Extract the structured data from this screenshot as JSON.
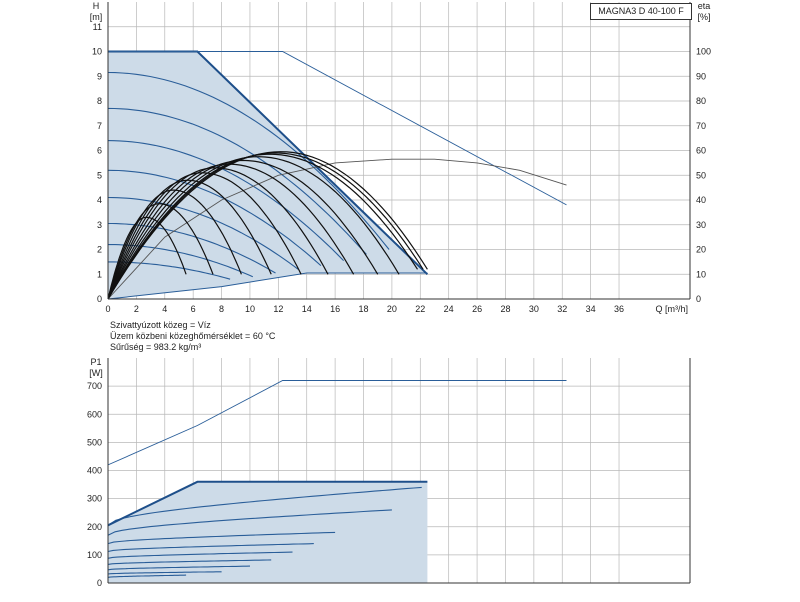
{
  "chart_title": "MAGNA3 D 40-100 F",
  "fluid_info": {
    "line1": "Szivattyúzott közeg = Víz",
    "line2": "Üzem közbeni közeghőmérséklet = 60 °C",
    "line3": "Sűrűség = 983.2 kg/m³"
  },
  "colors": {
    "dark_blue": "#1e4f8a",
    "mid_blue": "#2a5e99",
    "light_blue_fill": "#cddbe8",
    "grid": "#b8b8b8",
    "black_curve": "#111111",
    "thin_grey": "#555555"
  },
  "chart_data": [
    {
      "type": "line",
      "name": "head",
      "xlabel": "Q [m³/h]",
      "ylabel": "H [m]",
      "ylabel_right": "eta [%]",
      "x_ticks": [
        0,
        2,
        4,
        6,
        8,
        10,
        12,
        14,
        16,
        18,
        20,
        22,
        24,
        26,
        28,
        30,
        32,
        34,
        36
      ],
      "y_ticks": [
        0,
        1,
        2,
        3,
        4,
        5,
        6,
        7,
        8,
        9,
        10,
        11
      ],
      "y2_ticks": [
        0,
        10,
        20,
        30,
        40,
        50,
        60,
        70,
        80,
        90,
        100
      ],
      "xlim": [
        0,
        41
      ],
      "ylim": [
        0,
        12
      ],
      "y2lim": [
        0,
        120
      ],
      "grid": true,
      "max_envelope": [
        [
          0,
          10
        ],
        [
          6.3,
          10
        ],
        [
          22.5,
          1
        ]
      ],
      "single_pump_max": [
        [
          0,
          10
        ],
        [
          12.3,
          10
        ],
        [
          32.3,
          3.8
        ]
      ],
      "min_boundary": [
        [
          0,
          0
        ],
        [
          8,
          0.5
        ],
        [
          14,
          1.05
        ],
        [
          22.5,
          1.05
        ]
      ],
      "speed_curves": [
        {
          "H0": 9.15,
          "Qmax": 19.8,
          "Hend": 2.0
        },
        {
          "H0": 7.7,
          "Qmax": 18.2,
          "Hend": 1.8
        },
        {
          "H0": 6.4,
          "Qmax": 16.6,
          "Hend": 1.55
        },
        {
          "H0": 5.2,
          "Qmax": 15.0,
          "Hend": 1.35
        },
        {
          "H0": 4.1,
          "Qmax": 13.4,
          "Hend": 1.2
        },
        {
          "H0": 3.05,
          "Qmax": 11.8,
          "Hend": 1.05
        },
        {
          "H0": 2.2,
          "Qmax": 10.2,
          "Hend": 0.9
        },
        {
          "H0": 1.5,
          "Qmax": 8.6,
          "Hend": 0.8
        }
      ],
      "efficiency_curves_pct": [
        {
          "Qpeak": 12.2,
          "Qmax": 22.5,
          "peak": 59.5
        },
        {
          "Qpeak": 11.8,
          "Qmax": 22.2,
          "peak": 59.0
        },
        {
          "Qpeak": 11.4,
          "Qmax": 21.8,
          "peak": 58.5
        },
        {
          "Qpeak": 10.6,
          "Qmax": 20.5,
          "peak": 57.5
        },
        {
          "Qpeak": 9.5,
          "Qmax": 19.0,
          "peak": 56.0
        },
        {
          "Qpeak": 8.5,
          "Qmax": 17.3,
          "peak": 54.5
        },
        {
          "Qpeak": 7.5,
          "Qmax": 15.5,
          "peak": 53.0
        },
        {
          "Qpeak": 6.6,
          "Qmax": 13.6,
          "peak": 51.0
        },
        {
          "Qpeak": 5.6,
          "Qmax": 11.5,
          "peak": 48.0
        },
        {
          "Qpeak": 4.6,
          "Qmax": 9.4,
          "peak": 44.0
        },
        {
          "Qpeak": 3.6,
          "Qmax": 7.4,
          "peak": 38.5
        },
        {
          "Qpeak": 2.7,
          "Qmax": 5.5,
          "peak": 33.0
        }
      ],
      "single_pump_efficiency_pct": [
        [
          0,
          0
        ],
        [
          4,
          25
        ],
        [
          8,
          40
        ],
        [
          12,
          50
        ],
        [
          16,
          55
        ],
        [
          20,
          56.5
        ],
        [
          23,
          56.5
        ],
        [
          26,
          55
        ],
        [
          29,
          52
        ],
        [
          32.3,
          46
        ]
      ]
    },
    {
      "type": "line",
      "name": "power",
      "ylabel": "P1 [W]",
      "y_ticks": [
        0,
        100,
        200,
        300,
        400,
        500,
        600,
        700
      ],
      "xlim": [
        0,
        41
      ],
      "ylim": [
        0,
        800
      ],
      "grid": true,
      "max_envelope": [
        [
          0,
          205
        ],
        [
          6.3,
          360
        ],
        [
          22.5,
          360
        ]
      ],
      "single_pump_max": [
        [
          0,
          420
        ],
        [
          6.3,
          560
        ],
        [
          12.3,
          720
        ],
        [
          32.3,
          720
        ]
      ],
      "min_boundary": [
        [
          0,
          0
        ],
        [
          22.5,
          0
        ]
      ],
      "power_curves": [
        {
          "P0": 205,
          "Qend": 22.1,
          "Pend": 340
        },
        {
          "P0": 170,
          "Qend": 20.0,
          "Pend": 260
        },
        {
          "P0": 140,
          "Qend": 16.0,
          "Pend": 180
        },
        {
          "P0": 112,
          "Qend": 14.5,
          "Pend": 140
        },
        {
          "P0": 88,
          "Qend": 13.0,
          "Pend": 110
        },
        {
          "P0": 66,
          "Qend": 11.5,
          "Pend": 82
        },
        {
          "P0": 47,
          "Qend": 10.0,
          "Pend": 60
        },
        {
          "P0": 32,
          "Qend": 8.0,
          "Pend": 40
        },
        {
          "P0": 20,
          "Qend": 5.5,
          "Pend": 28
        }
      ]
    }
  ]
}
